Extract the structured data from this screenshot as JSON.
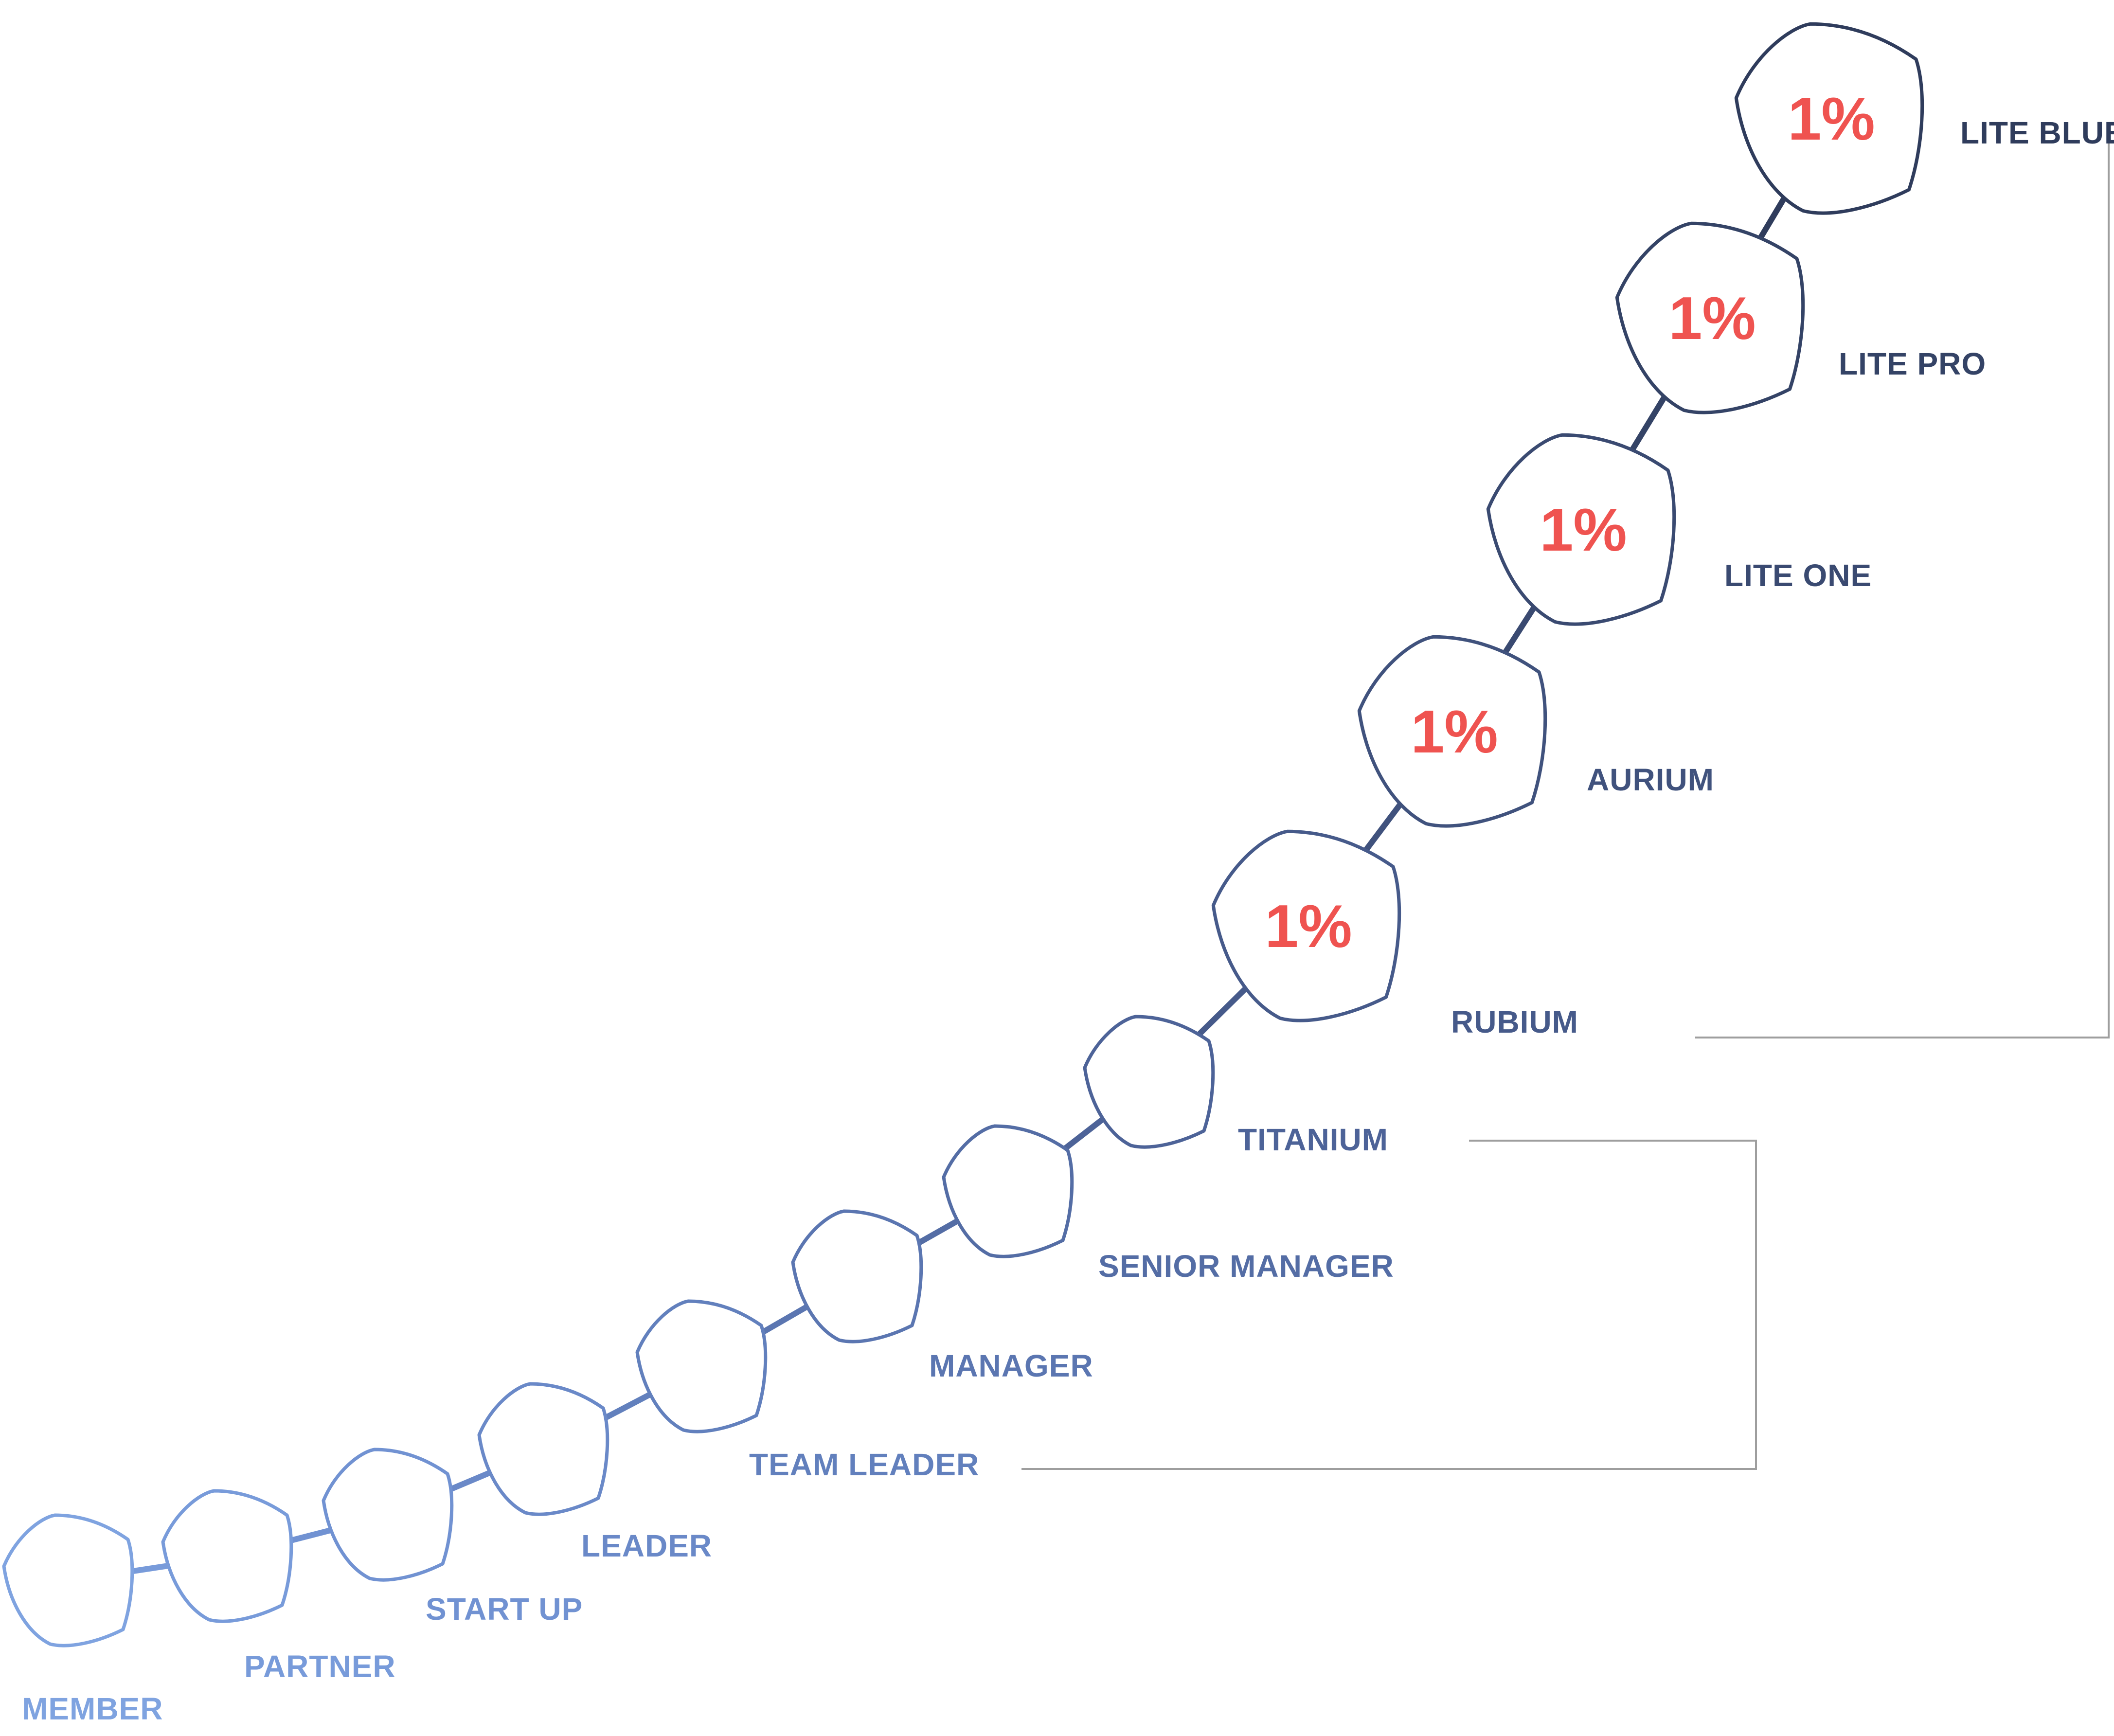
{
  "diagram": {
    "ranks": [
      {
        "label": "MEMBER",
        "value": "",
        "color": "#7fa3e0"
      },
      {
        "label": "PARTNER",
        "value": "",
        "color": "#789bda"
      },
      {
        "label": "START UP",
        "value": "",
        "color": "#7192d2"
      },
      {
        "label": "LEADER",
        "value": "",
        "color": "#6a89c8"
      },
      {
        "label": "TEAM LEADER",
        "value": "",
        "color": "#6280bd"
      },
      {
        "label": "MANAGER",
        "value": "",
        "color": "#5b76b1"
      },
      {
        "label": "SENIOR MANAGER",
        "value": "",
        "color": "#546da5"
      },
      {
        "label": "TITANIUM",
        "value": "",
        "color": "#4d6398"
      },
      {
        "label": "RUBIUM",
        "value": "1%",
        "color": "#465a8a"
      },
      {
        "label": "AURIUM",
        "value": "1%",
        "color": "#40527d"
      },
      {
        "label": "LITE ONE",
        "value": "1%",
        "color": "#3a4a71"
      },
      {
        "label": "LITE PRO",
        "value": "1%",
        "color": "#344366"
      },
      {
        "label": "LITE BLUE",
        "value": "1%",
        "color": "#2f3c5c"
      }
    ],
    "bracket_color": "#9e9e9e",
    "percent_color": "#ef5350"
  }
}
